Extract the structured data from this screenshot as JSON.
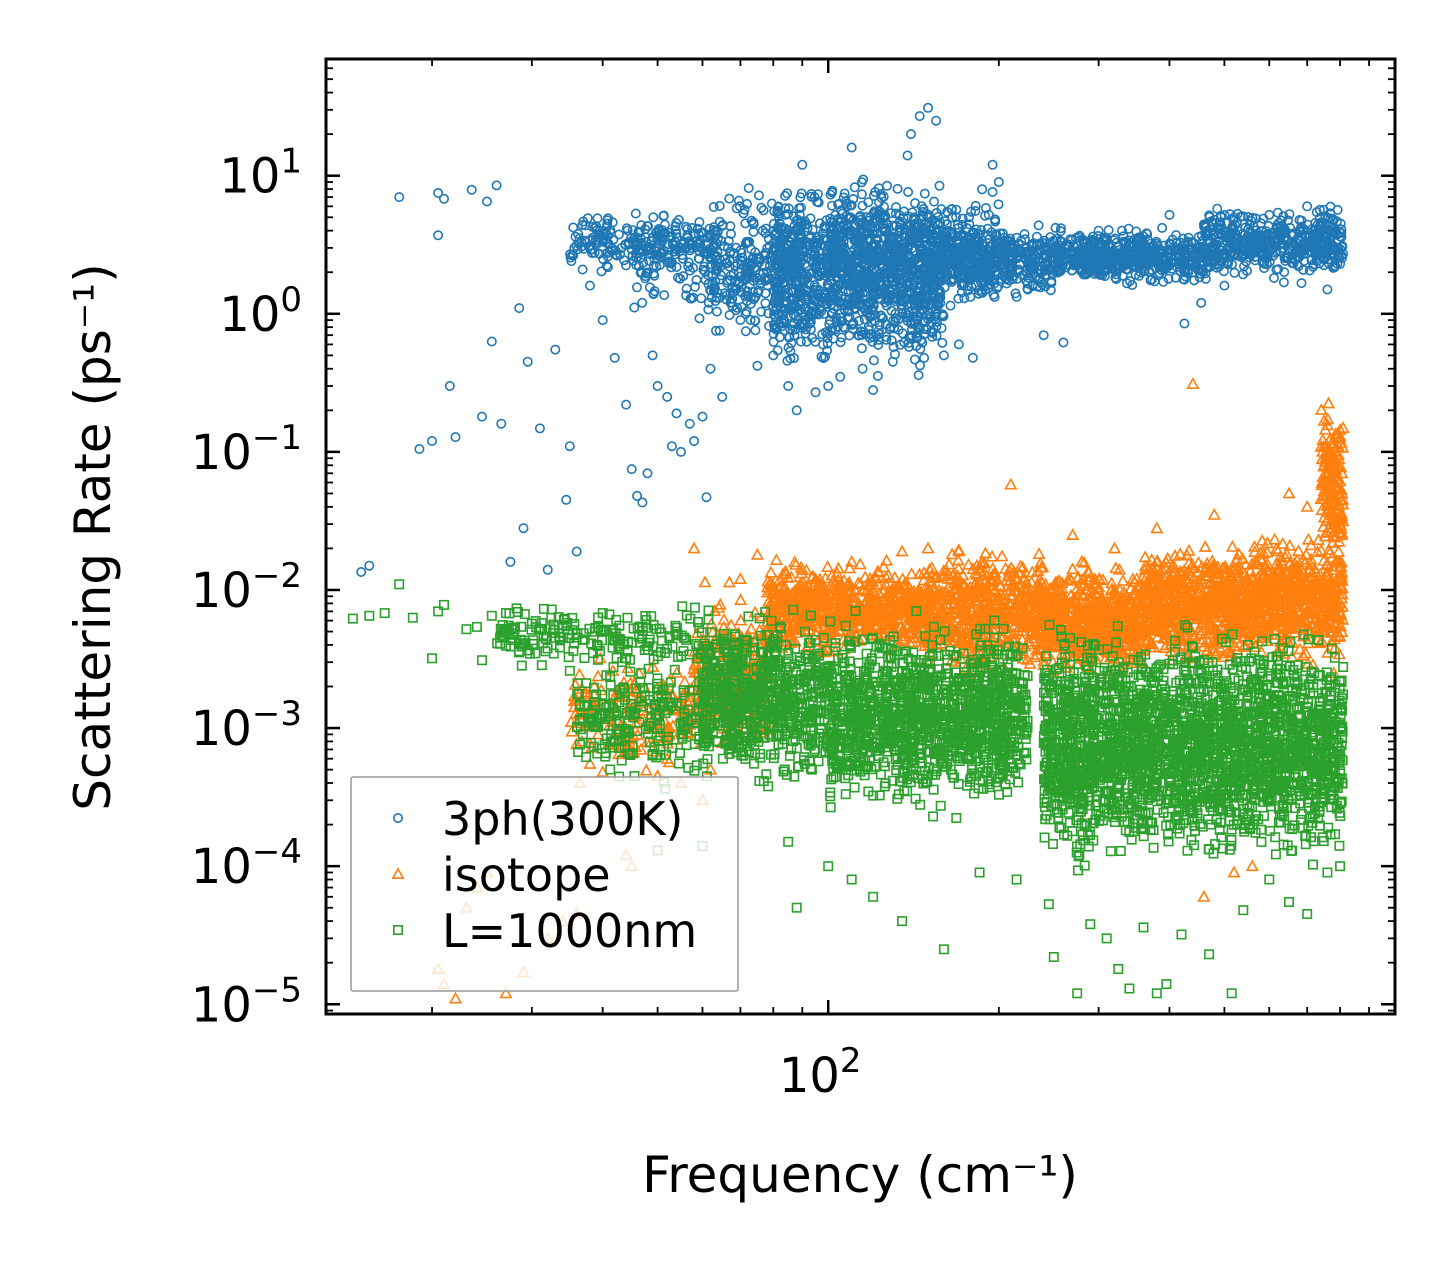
{
  "chart_data": {
    "type": "scatter",
    "xscale": "log",
    "yscale": "log",
    "xlabel": "Frequency (cm⁻¹)",
    "ylabel": "Scattering Rate (ps⁻¹)",
    "xlim": [
      13,
      1000
    ],
    "ylim": [
      8.5e-06,
      70
    ],
    "x_tick_labels": [
      {
        "value": 100,
        "base": "10",
        "exp": "2"
      }
    ],
    "y_tick_labels": [
      {
        "value": 10,
        "base": "10",
        "exp": "1"
      },
      {
        "value": 1,
        "base": "10",
        "exp": "0"
      },
      {
        "value": 0.1,
        "base": "10",
        "exp": "−1"
      },
      {
        "value": 0.01,
        "base": "10",
        "exp": "−2"
      },
      {
        "value": 0.001,
        "base": "10",
        "exp": "−3"
      },
      {
        "value": 0.0001,
        "base": "10",
        "exp": "−4"
      },
      {
        "value": 1e-05,
        "base": "10",
        "exp": "−5"
      }
    ],
    "legend": {
      "location": "lower-left",
      "entries": [
        "3ph(300K)",
        "isotope",
        "L=1000nm"
      ]
    },
    "series": [
      {
        "name": "3ph(300K)",
        "marker": "circle",
        "color": "#1f77b4",
        "points": [
          [
            15.0,
            0.0135
          ],
          [
            15.5,
            0.015
          ],
          [
            17.5,
            7.0
          ],
          [
            19.0,
            0.105
          ],
          [
            20.0,
            0.12
          ],
          [
            20.5,
            3.7
          ],
          [
            20.5,
            7.5
          ],
          [
            21.0,
            6.8
          ],
          [
            21.5,
            0.3
          ],
          [
            22.0,
            0.128
          ],
          [
            23.5,
            7.9
          ],
          [
            24.5,
            0.18
          ],
          [
            25.0,
            6.5
          ],
          [
            25.5,
            0.63
          ],
          [
            26.0,
            8.5
          ],
          [
            26.5,
            0.16
          ],
          [
            27.5,
            0.016
          ],
          [
            28.5,
            1.1
          ],
          [
            29.0,
            0.028
          ],
          [
            29.5,
            0.45
          ],
          [
            31.0,
            0.148
          ],
          [
            32.0,
            0.014
          ],
          [
            33.0,
            0.55
          ],
          [
            34.5,
            0.045
          ],
          [
            35.0,
            0.11
          ],
          [
            36.0,
            0.019
          ],
          [
            38.0,
            1.6
          ],
          [
            40.0,
            0.9
          ],
          [
            42.0,
            0.48
          ],
          [
            44.0,
            0.22
          ],
          [
            45.0,
            0.075
          ],
          [
            46.0,
            0.048
          ],
          [
            47.0,
            0.043
          ],
          [
            48.0,
            0.07
          ],
          [
            49.0,
            0.5
          ],
          [
            50.0,
            0.3
          ],
          [
            52.0,
            0.25
          ],
          [
            53.0,
            0.11
          ],
          [
            54.0,
            0.19
          ],
          [
            55.0,
            0.1
          ],
          [
            57.0,
            0.16
          ],
          [
            58.0,
            0.12
          ],
          [
            60.0,
            0.18
          ],
          [
            61.0,
            0.047
          ],
          [
            62.0,
            0.4
          ],
          [
            65.0,
            0.25
          ],
          [
            70.0,
            0.9
          ],
          [
            75.0,
            0.42
          ],
          [
            80.0,
            0.5
          ],
          [
            85.0,
            0.3
          ],
          [
            88.0,
            0.2
          ],
          [
            90.0,
            12.0
          ],
          [
            95.0,
            0.27
          ],
          [
            100.0,
            0.3
          ],
          [
            105.0,
            0.35
          ],
          [
            110.0,
            16.0
          ],
          [
            115.0,
            0.4
          ],
          [
            120.0,
            0.28
          ],
          [
            130.0,
            0.45
          ],
          [
            138.0,
            14.0
          ],
          [
            140.0,
            20.0
          ],
          [
            145.0,
            27.0
          ],
          [
            150.0,
            31.0
          ],
          [
            155.0,
            25.0
          ],
          [
            160.0,
            0.5
          ],
          [
            170.0,
            0.6
          ],
          [
            180.0,
            0.48
          ],
          [
            195.0,
            12.0
          ],
          [
            200.0,
            9.0
          ],
          [
            210.0,
            2.8
          ],
          [
            225.0,
            1.5
          ],
          [
            240.0,
            0.7
          ],
          [
            260.0,
            0.62
          ],
          [
            300.0,
            4.0
          ],
          [
            350.0,
            2.5
          ],
          [
            400.0,
            5.2
          ],
          [
            425.0,
            0.85
          ],
          [
            455.0,
            1.2
          ],
          [
            500.0,
            1.6
          ],
          [
            520.0,
            5.0
          ],
          [
            600.0,
            5.2
          ],
          [
            700.0,
            6.0
          ],
          [
            760.0,
            1.5
          ],
          [
            800.0,
            2.3
          ]
        ],
        "bands": [
          {
            "x": [
              35,
              60
            ],
            "y": [
              1.8,
              6.0
            ],
            "n": 200
          },
          {
            "x": [
              45,
              75
            ],
            "y": [
              0.8,
              6.5
            ],
            "n": 120
          },
          {
            "x": [
              60,
              90
            ],
            "y": [
              0.5,
              10.0
            ],
            "n": 260
          },
          {
            "x": [
              80,
              160
            ],
            "y": [
              0.28,
              12.0
            ],
            "n": 1100
          },
          {
            "x": [
              100,
              200
            ],
            "y": [
              0.8,
              10.0
            ],
            "n": 450
          },
          {
            "x": [
              160,
              250
            ],
            "y": [
              1.2,
              5.0
            ],
            "n": 380
          },
          {
            "x": [
              250,
              460
            ],
            "y": [
              1.5,
              4.5
            ],
            "n": 550
          },
          {
            "x": [
              460,
              810
            ],
            "y": [
              1.6,
              6.5
            ],
            "n": 500
          }
        ]
      },
      {
        "name": "isotope",
        "marker": "triangle",
        "color": "#ff7f0e",
        "points": [
          [
            20.5,
            1.8e-05
          ],
          [
            21.0,
            1.4e-05
          ],
          [
            22.0,
            1.1e-05
          ],
          [
            23.0,
            5e-05
          ],
          [
            24.0,
            7e-05
          ],
          [
            25.0,
            9e-05
          ],
          [
            27.0,
            1.2e-05
          ],
          [
            29.0,
            1.7e-05
          ],
          [
            32.0,
            3e-05
          ],
          [
            34.0,
            4e-05
          ],
          [
            36.0,
            4.5e-05
          ],
          [
            36.5,
            0.0004
          ],
          [
            38.0,
            0.00055
          ],
          [
            40.0,
            0.00048
          ],
          [
            42.0,
            0.00075
          ],
          [
            44.0,
            0.00012
          ],
          [
            45.0,
            0.0001
          ],
          [
            50.0,
            0.00045
          ],
          [
            52.0,
            0.0006
          ],
          [
            55.0,
            0.0004
          ],
          [
            58.0,
            0.02
          ],
          [
            60.0,
            0.0003
          ],
          [
            62.0,
            0.0005
          ],
          [
            70.0,
            0.012
          ],
          [
            75.0,
            0.018
          ],
          [
            90.0,
            0.014
          ],
          [
            110.0,
            0.016
          ],
          [
            135.0,
            0.019
          ],
          [
            150.0,
            0.02
          ],
          [
            170.0,
            0.019
          ],
          [
            210.0,
            0.058
          ],
          [
            270.0,
            0.025
          ],
          [
            320.0,
            0.02
          ],
          [
            380.0,
            0.028
          ],
          [
            440.0,
            0.31
          ],
          [
            460.0,
            6e-05
          ],
          [
            480.0,
            0.035
          ],
          [
            520.0,
            9e-05
          ],
          [
            560.0,
            0.0001
          ],
          [
            650.0,
            0.05
          ],
          [
            700.0,
            0.04
          ],
          [
            780.0,
            0.0025
          ]
        ],
        "bands": [
          {
            "x": [
              35,
              58
            ],
            "y": [
              0.0004,
              0.0045
            ],
            "n": 160
          },
          {
            "x": [
              58,
              78
            ],
            "y": [
              0.0005,
              0.012
            ],
            "n": 260
          },
          {
            "x": [
              78,
              150
            ],
            "y": [
              0.003,
              0.018
            ],
            "n": 700
          },
          {
            "x": [
              150,
              240
            ],
            "y": [
              0.002,
              0.025
            ],
            "n": 560
          },
          {
            "x": [
              240,
              360
            ],
            "y": [
              0.002,
              0.018
            ],
            "n": 600
          },
          {
            "x": [
              360,
              560
            ],
            "y": [
              0.0025,
              0.025
            ],
            "n": 650
          },
          {
            "x": [
              560,
              810
            ],
            "y": [
              0.0025,
              0.03
            ],
            "n": 520
          },
          {
            "x": [
              740,
              810
            ],
            "y": [
              0.01,
              0.28
            ],
            "n": 160
          }
        ]
      },
      {
        "name": "L=1000nm",
        "marker": "square",
        "color": "#2ca02c",
        "points": [
          [
            14.5,
            0.0062
          ],
          [
            15.5,
            0.0065
          ],
          [
            16.5,
            0.0068
          ],
          [
            17.5,
            0.011
          ],
          [
            18.5,
            0.0063
          ],
          [
            20.0,
            0.0032
          ],
          [
            20.5,
            0.007
          ],
          [
            21.0,
            0.0078
          ],
          [
            23.0,
            0.0052
          ],
          [
            24.0,
            0.0054
          ],
          [
            24.5,
            0.0031
          ],
          [
            25.5,
            0.0065
          ],
          [
            27.0,
            0.0068
          ],
          [
            28.5,
            0.0036
          ],
          [
            30.0,
            0.0057
          ],
          [
            31.5,
            0.0073
          ],
          [
            33.0,
            0.0045
          ],
          [
            35.0,
            0.0026
          ],
          [
            40.0,
            0.0068
          ],
          [
            44.0,
            0.0032
          ],
          [
            50.0,
            0.00013
          ],
          [
            60.0,
            0.00014
          ],
          [
            85.0,
            0.00015
          ],
          [
            88.0,
            5e-05
          ],
          [
            100.0,
            0.0001
          ],
          [
            110.0,
            8e-05
          ],
          [
            120.0,
            6e-05
          ],
          [
            135.0,
            4e-05
          ],
          [
            160.0,
            2.5e-05
          ],
          [
            185.0,
            9e-05
          ],
          [
            215.0,
            8e-05
          ],
          [
            245.0,
            5.3e-05
          ],
          [
            250.0,
            2.2e-05
          ],
          [
            275.0,
            1.2e-05
          ],
          [
            290.0,
            3.8e-05
          ],
          [
            310.0,
            3e-05
          ],
          [
            325.0,
            1.8e-05
          ],
          [
            340.0,
            1.3e-05
          ],
          [
            360.0,
            3.6e-05
          ],
          [
            380.0,
            1.2e-05
          ],
          [
            395.0,
            1.4e-05
          ],
          [
            420.0,
            3.2e-05
          ],
          [
            470.0,
            2.3e-05
          ],
          [
            515.0,
            1.2e-05
          ],
          [
            540.0,
            4.8e-05
          ],
          [
            600.0,
            8e-05
          ],
          [
            650.0,
            5.5e-05
          ],
          [
            700.0,
            4.5e-05
          ],
          [
            760.0,
            9e-05
          ],
          [
            800.0,
            0.0001
          ]
        ],
        "bands": [
          {
            "x": [
              26,
              60
            ],
            "y": [
              0.0025,
              0.0085
            ],
            "n": 180
          },
          {
            "x": [
              36,
              62
            ],
            "y": [
              0.0003,
              0.0045
            ],
            "n": 220
          },
          {
            "x": [
              60,
              100
            ],
            "y": [
              0.0003,
              0.009
            ],
            "n": 650
          },
          {
            "x": [
              100,
              210
            ],
            "y": [
              0.0002,
              0.0075
            ],
            "n": 1200
          },
          {
            "x": [
              210,
              225
            ],
            "y": [
              0.0003,
              0.006
            ],
            "n": 80
          },
          {
            "x": [
              240,
              360
            ],
            "y": [
              8e-05,
              0.007
            ],
            "n": 900
          },
          {
            "x": [
              360,
              560
            ],
            "y": [
              8e-05,
              0.007
            ],
            "n": 900
          },
          {
            "x": [
              560,
              810
            ],
            "y": [
              8e-05,
              0.007
            ],
            "n": 700
          }
        ]
      }
    ]
  }
}
